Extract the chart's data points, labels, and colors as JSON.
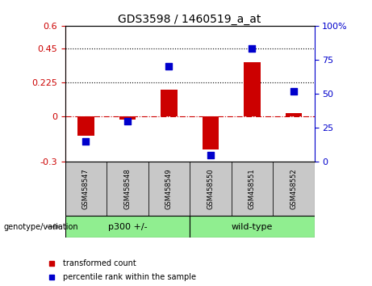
{
  "title": "GDS3598 / 1460519_a_at",
  "samples": [
    "GSM458547",
    "GSM458548",
    "GSM458549",
    "GSM458550",
    "GSM458551",
    "GSM458552"
  ],
  "red_values": [
    -0.13,
    -0.02,
    0.175,
    -0.22,
    0.36,
    0.02
  ],
  "blue_values_pct": [
    15,
    30,
    70,
    5,
    83,
    52
  ],
  "left_ylim": [
    -0.3,
    0.6
  ],
  "left_yticks": [
    -0.3,
    0.0,
    0.225,
    0.45,
    0.6
  ],
  "right_ylim": [
    0,
    100
  ],
  "right_yticks": [
    0,
    25,
    50,
    75,
    100
  ],
  "dotted_lines": [
    0.225,
    0.45
  ],
  "bar_color": "#CC0000",
  "dot_color": "#0000CC",
  "bar_width": 0.4,
  "dot_size": 30,
  "genotype_label": "genotype/variation",
  "legend_red": "transformed count",
  "legend_blue": "percentile rank within the sample",
  "tick_label_color_left": "#CC0000",
  "tick_label_color_right": "#0000CC",
  "group1_label": "p300 +/-",
  "group2_label": "wild-type",
  "group_color": "#90EE90",
  "sample_box_color": "#C8C8C8"
}
